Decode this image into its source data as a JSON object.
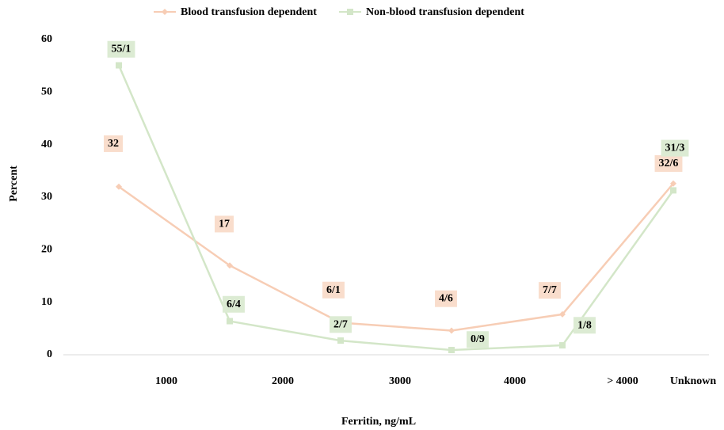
{
  "chart_data": {
    "type": "line",
    "categories": [
      "1000",
      "2000",
      "3000",
      "4000",
      "> 4000",
      "Unknown"
    ],
    "series": [
      {
        "name": "Blood transfusion dependent",
        "color": "#f7cdb5",
        "label_bg": "#f9ddcc",
        "values": [
          32,
          17,
          6.1,
          4.6,
          7.7,
          32.6
        ],
        "value_labels": [
          "32",
          "17",
          "6/1",
          "4/6",
          "7/7",
          "32/6"
        ]
      },
      {
        "name": "Non-blood transfusion dependent",
        "color": "#d3e6c8",
        "label_bg": "#dcebd3",
        "values": [
          55.1,
          6.4,
          2.7,
          0.9,
          1.8,
          31.3
        ],
        "value_labels": [
          "55/1",
          "6/4",
          "2/7",
          "0/9",
          "1/8",
          "31/3"
        ]
      }
    ],
    "ylim": [
      0,
      60
    ],
    "yticks": [
      0,
      10,
      20,
      30,
      40,
      50,
      60
    ],
    "xlabel": "Ferritin, ng/mL",
    "ylabel": "Percent",
    "legend": "top"
  }
}
